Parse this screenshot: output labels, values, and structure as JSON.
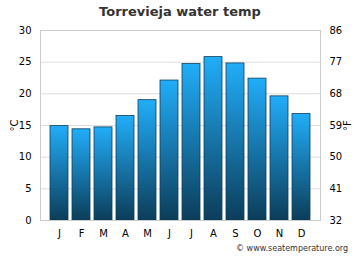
{
  "chart_data": {
    "type": "bar",
    "title": "Torrevieja water temp",
    "categories": [
      "J",
      "F",
      "M",
      "A",
      "M",
      "J",
      "J",
      "A",
      "S",
      "O",
      "N",
      "D"
    ],
    "values": [
      14.9,
      14.4,
      14.7,
      16.5,
      19.0,
      22.1,
      24.7,
      25.8,
      24.8,
      22.4,
      19.6,
      16.8
    ],
    "color": "#1e9be0",
    "ylabel": "°C",
    "ylim": [
      0,
      30
    ],
    "yticks": [
      0,
      5,
      10,
      15,
      20,
      25,
      30
    ],
    "y2label": "°F",
    "y2lim": [
      32,
      86
    ],
    "y2ticks": [
      32,
      41,
      50,
      59,
      68,
      77,
      86
    ],
    "grid": true,
    "caption": "© www.seatemperature.org"
  }
}
